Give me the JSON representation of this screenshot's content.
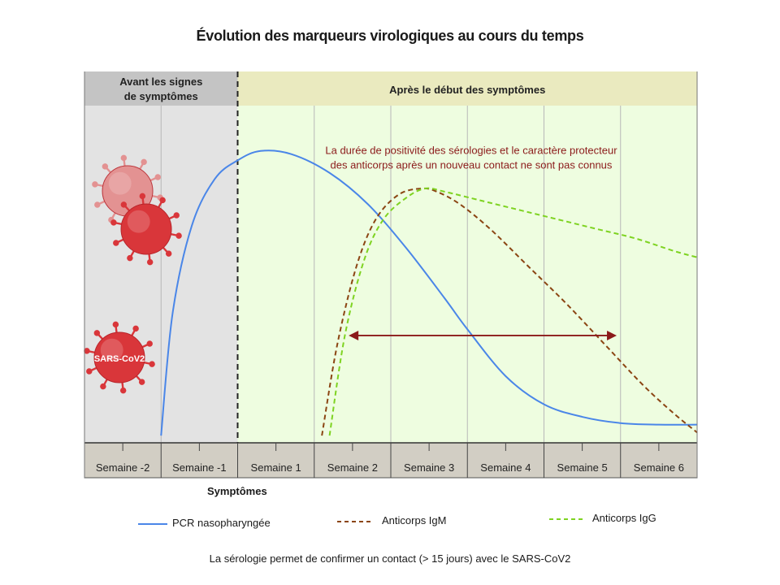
{
  "title": "Évolution des marqueurs virologiques au cours du temps",
  "footer": "La sérologie permet de confirmer un contact (> 15 jours) avec le SARS-CoV2",
  "symptoms_label": "Symptômes",
  "virus_label": "SARS-CoV2",
  "colors": {
    "pcr": "#4a86e8",
    "igm": "#8b4513",
    "igg": "#7ed321",
    "annotation": "#8b1a1a",
    "before_bg": "#e3e3e3",
    "before_header": "#c4c4c4",
    "after_bg": "#eefde0",
    "after_header": "#eaeabf",
    "axis_band": "#d2cec4",
    "virus": "#d9363a"
  },
  "chart_data": {
    "type": "line",
    "title": "Évolution des marqueurs virologiques au cours du temps",
    "x_unit": "semaines",
    "xlim": [
      -2,
      6
    ],
    "ylim": [
      0,
      1
    ],
    "y_axis_labeled": false,
    "regions": [
      {
        "label": "Avant les signes de symptômes",
        "x_range": [
          -2,
          0
        ]
      },
      {
        "label": "Après le début des symptômes",
        "x_range": [
          0,
          6
        ]
      }
    ],
    "categories": [
      "Semaine -2",
      "Semaine -1",
      "Semaine 1",
      "Semaine 2",
      "Semaine 3",
      "Semaine 4",
      "Semaine 5",
      "Semaine 6"
    ],
    "series": [
      {
        "name": "PCR nasopharyngée",
        "style": "solid",
        "color": "#4a86e8",
        "x": [
          -1,
          -0.85,
          -0.6,
          -0.3,
          0,
          0.3,
          0.7,
          1.2,
          1.7,
          2.2,
          2.7,
          3.0,
          3.5,
          4.0,
          4.5,
          5.0,
          5.5,
          6.0
        ],
        "y": [
          0.01,
          0.4,
          0.68,
          0.83,
          0.89,
          0.92,
          0.91,
          0.85,
          0.75,
          0.61,
          0.45,
          0.35,
          0.2,
          0.11,
          0.07,
          0.05,
          0.045,
          0.045
        ]
      },
      {
        "name": "Anticorps IgM",
        "style": "dashed",
        "color": "#8b4513",
        "x": [
          1.1,
          1.3,
          1.55,
          1.8,
          2.1,
          2.4,
          2.6,
          2.9,
          3.3,
          3.8,
          4.3,
          4.8,
          5.3,
          5.7,
          6.0
        ],
        "y": [
          0.01,
          0.3,
          0.55,
          0.7,
          0.78,
          0.8,
          0.79,
          0.75,
          0.67,
          0.55,
          0.43,
          0.3,
          0.17,
          0.08,
          0.02
        ]
      },
      {
        "name": "Anticorps IgG",
        "style": "dashed",
        "color": "#7ed321",
        "x": [
          1.2,
          1.4,
          1.65,
          1.9,
          2.2,
          2.45,
          2.7,
          3.2,
          3.7,
          4.2,
          4.7,
          5.2,
          5.7,
          6.0
        ],
        "y": [
          0.01,
          0.33,
          0.57,
          0.7,
          0.77,
          0.8,
          0.79,
          0.76,
          0.73,
          0.7,
          0.67,
          0.64,
          0.6,
          0.58
        ]
      }
    ],
    "annotations": [
      {
        "text_lines": [
          "La durée de positivité des sérologies et le caractère protecteur",
          "des anticorps après un nouveau contact ne sont pas connus"
        ],
        "x": 3.05,
        "y": 0.91
      }
    ],
    "arrow": {
      "x_start": 1.45,
      "x_end": 4.95,
      "y": 0.33
    },
    "legend": {
      "position": "bottom"
    },
    "grid": true
  }
}
